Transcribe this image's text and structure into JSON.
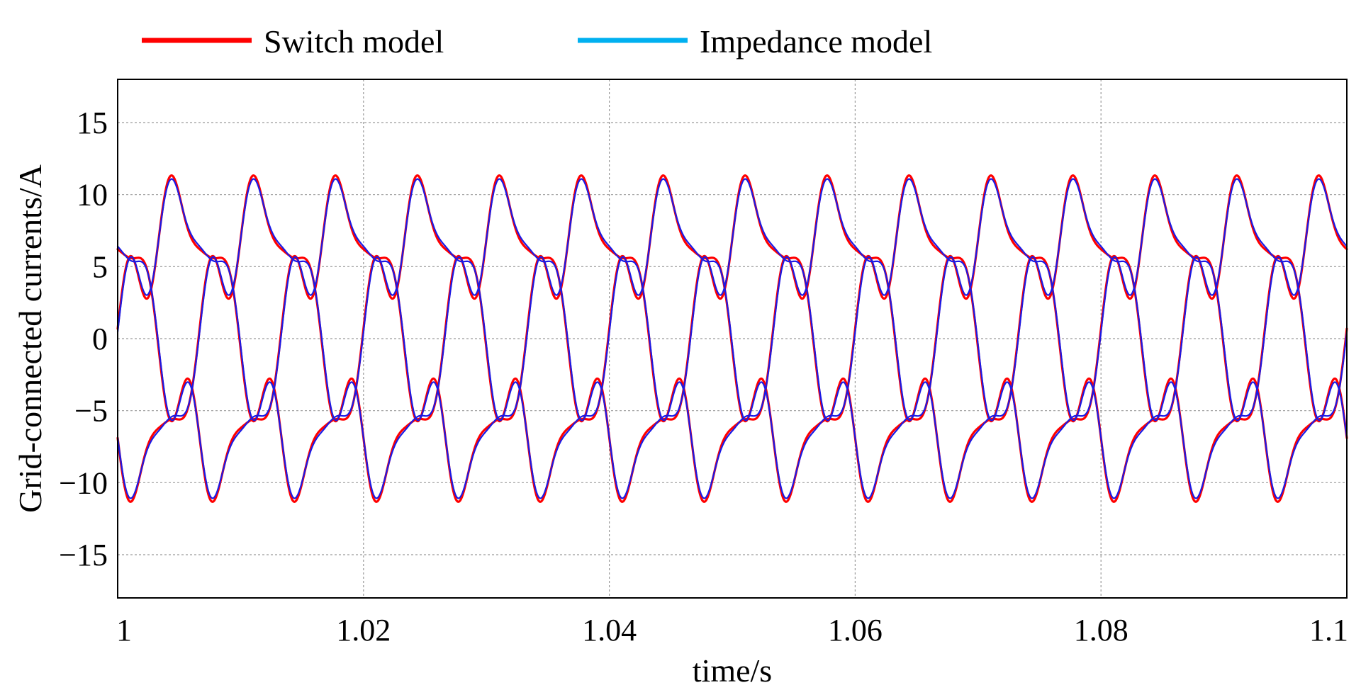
{
  "chart_data": {
    "type": "line",
    "title": "",
    "xlabel": "time/s",
    "ylabel": "Grid-connected currents/A",
    "xlim": [
      1.0,
      1.1
    ],
    "ylim": [
      -18,
      18
    ],
    "grid": true,
    "legend_position": "top",
    "x_ticks": [
      1.0,
      1.02,
      1.04,
      1.06,
      1.08,
      1.1
    ],
    "x_tick_labels": [
      "1",
      "1.02",
      "1.04",
      "1.06",
      "1.08",
      "1.1"
    ],
    "y_ticks": [
      15,
      10,
      5,
      0,
      -5,
      -10,
      -15
    ],
    "y_tick_labels": [
      "15",
      "10",
      "5",
      "0",
      "−5",
      "−10",
      "−15"
    ],
    "waveform": {
      "fundamental_hz": 50,
      "phases_deg": [
        0,
        -120,
        120
      ],
      "components": [
        {
          "harmonic": 1,
          "amplitude": 8.8,
          "phase_deg": 0
        },
        {
          "harmonic": 5,
          "amplitude": 2.2,
          "phase_deg": 30
        },
        {
          "harmonic": 7,
          "amplitude": 1.0,
          "phase_deg": -40
        }
      ]
    },
    "series": [
      {
        "name": "Switch model",
        "color": "#ff0000",
        "legend_color": "#ff0000",
        "delta": 0.25
      },
      {
        "name": "Impedance model",
        "color": "#1a1ae6",
        "legend_color": "#00b0f0",
        "delta": 0.0
      }
    ]
  }
}
